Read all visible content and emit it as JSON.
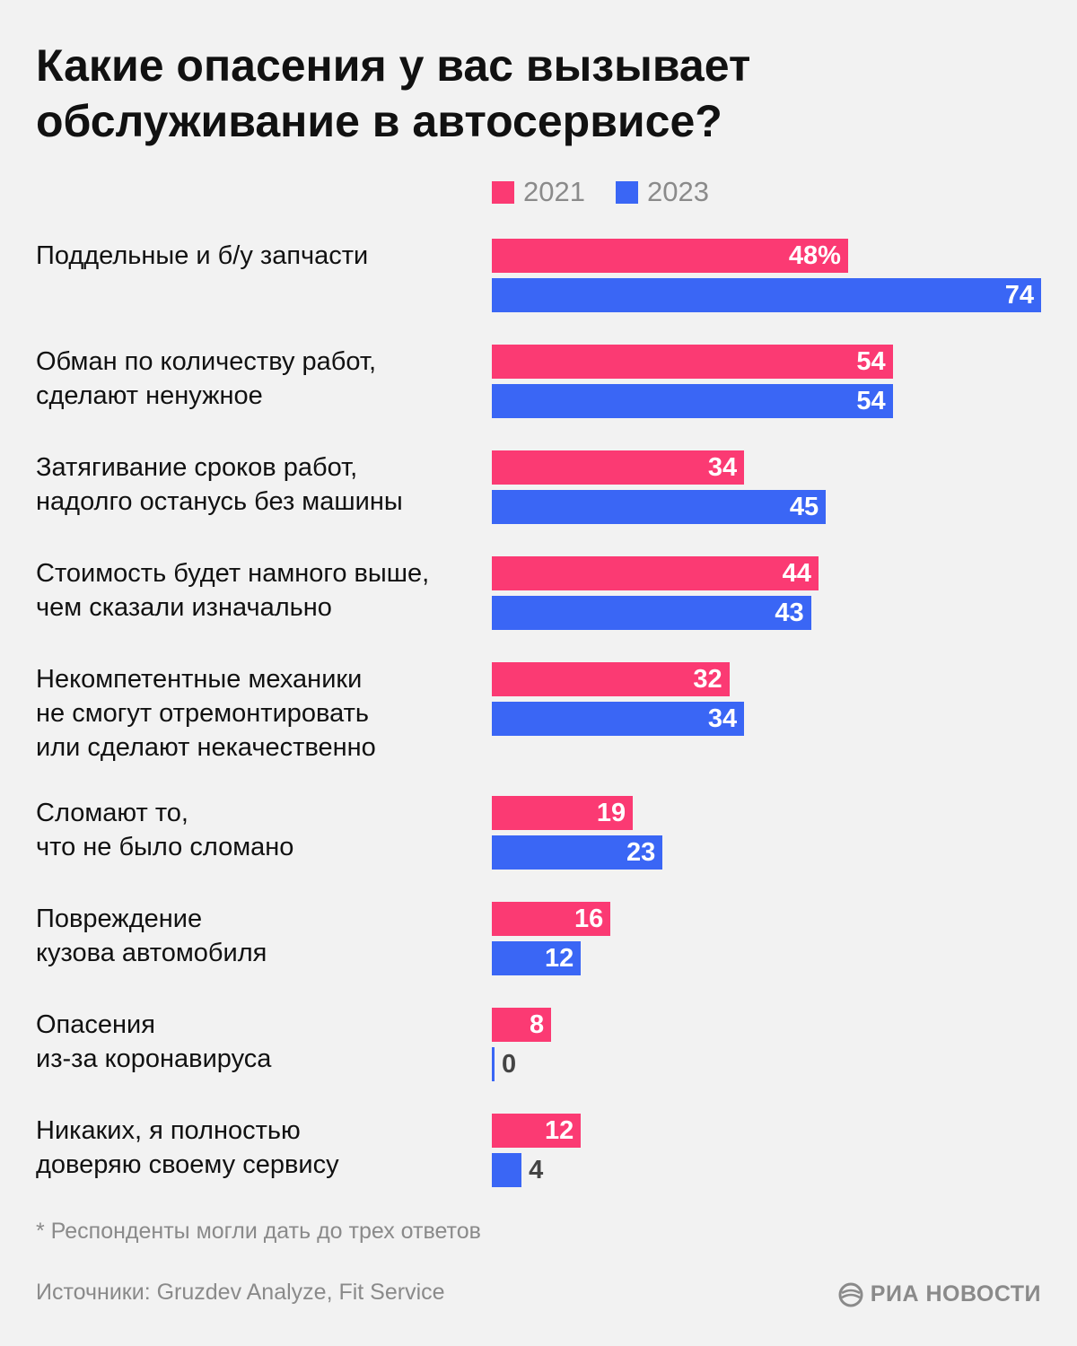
{
  "header": {
    "title_line1": "Какие опасения у вас вызывает",
    "title_line2": "обслуживание в автосервисе?"
  },
  "legend": [
    {
      "label": "2021",
      "color": "#fb3a73"
    },
    {
      "label": "2023",
      "color": "#3a66f5"
    }
  ],
  "chart_data": {
    "type": "bar",
    "orientation": "horizontal",
    "unit": "%",
    "xlim": [
      0,
      74
    ],
    "series": [
      {
        "name": "2021",
        "color": "#fb3a73",
        "values": [
          48,
          54,
          34,
          44,
          32,
          19,
          16,
          8,
          12
        ]
      },
      {
        "name": "2023",
        "color": "#3a66f5",
        "values": [
          74,
          54,
          45,
          43,
          34,
          23,
          12,
          0,
          4
        ]
      }
    ],
    "categories": [
      [
        "Поддельные и б/у запчасти"
      ],
      [
        "Обман по количеству работ,",
        "сделают ненужное"
      ],
      [
        "Затягивание сроков работ,",
        "надолго останусь без машины"
      ],
      [
        "Стоимость будет намного выше,",
        "чем сказали изначально"
      ],
      [
        "Некомпетентные механики",
        "не смогут отремонтировать",
        "или сделают некачественно"
      ],
      [
        "Сломают то,",
        "что не было сломано"
      ],
      [
        "Повреждение",
        "кузова автомобиля"
      ],
      [
        "Опасения",
        "из-за коронавируса"
      ],
      [
        "Никаких, я полностью",
        "доверяю своему сервису"
      ]
    ],
    "value_labels": {
      "2021": [
        "48%",
        "54",
        "34",
        "44",
        "32",
        "19",
        "16",
        "8",
        "12"
      ],
      "2023": [
        "74",
        "54",
        "45",
        "43",
        "34",
        "23",
        "12",
        "0",
        "4"
      ]
    }
  },
  "footer": {
    "footnote": "* Респонденты могли дать до трех ответов",
    "source": "Источники: Gruzdev Analyze, Fit Service",
    "logo_text": "РИА НОВОСТИ"
  }
}
